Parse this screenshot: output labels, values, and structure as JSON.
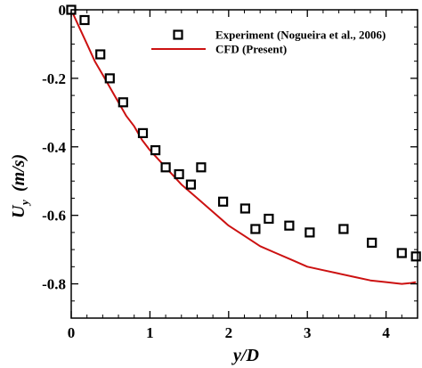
{
  "chart_data": {
    "type": "scatter",
    "title": "",
    "xlabel": "y/D",
    "ylabel_main": "U",
    "ylabel_sub": "y",
    "ylabel_unit": "(m/s)",
    "xlim": [
      0,
      4.4
    ],
    "ylim": [
      -0.9,
      0
    ],
    "x_ticks": [
      {
        "value": 0,
        "label": "0"
      },
      {
        "value": 1,
        "label": "1"
      },
      {
        "value": 2,
        "label": "2"
      },
      {
        "value": 3,
        "label": "3"
      },
      {
        "value": 4,
        "label": "4"
      }
    ],
    "y_ticks": [
      {
        "value": 0,
        "label": "0"
      },
      {
        "value": -0.2,
        "label": "-0.2"
      },
      {
        "value": -0.4,
        "label": "-0.4"
      },
      {
        "value": -0.6,
        "label": "-0.6"
      },
      {
        "value": -0.8,
        "label": "-0.8"
      }
    ],
    "x_minor_step": 0.2,
    "y_minor_step": 0.05,
    "grid": false,
    "legend_position": "top-right",
    "series": [
      {
        "name": "Experiment (Nogueira et al., 2006)",
        "kind": "markers",
        "marker": "open-square",
        "color": "#000000",
        "x": [
          0.0,
          0.17,
          0.37,
          0.49,
          0.66,
          0.91,
          1.07,
          1.2,
          1.37,
          1.52,
          1.65,
          1.93,
          2.21,
          2.34,
          2.51,
          2.77,
          3.03,
          3.46,
          3.82,
          4.2,
          4.38
        ],
        "y": [
          0.0,
          -0.03,
          -0.13,
          -0.2,
          -0.27,
          -0.36,
          -0.41,
          -0.46,
          -0.48,
          -0.51,
          -0.46,
          -0.56,
          -0.58,
          -0.64,
          -0.61,
          -0.63,
          -0.65,
          -0.64,
          -0.68,
          -0.71,
          -0.72
        ]
      },
      {
        "name": "CFD (Present)",
        "kind": "line",
        "color": "#cc1111",
        "x": [
          0.0,
          0.1,
          0.2,
          0.3,
          0.4,
          0.5,
          0.6,
          0.7,
          0.8,
          0.9,
          1.0,
          1.2,
          1.4,
          1.6,
          1.8,
          2.0,
          2.2,
          2.4,
          2.6,
          2.8,
          3.0,
          3.2,
          3.4,
          3.6,
          3.8,
          4.0,
          4.2,
          4.3,
          4.38
        ],
        "y": [
          0.0,
          -0.05,
          -0.1,
          -0.15,
          -0.19,
          -0.23,
          -0.27,
          -0.31,
          -0.34,
          -0.38,
          -0.41,
          -0.46,
          -0.51,
          -0.55,
          -0.59,
          -0.63,
          -0.66,
          -0.69,
          -0.71,
          -0.73,
          -0.75,
          -0.76,
          -0.77,
          -0.78,
          -0.79,
          -0.795,
          -0.8,
          -0.798,
          -0.795
        ]
      }
    ]
  }
}
